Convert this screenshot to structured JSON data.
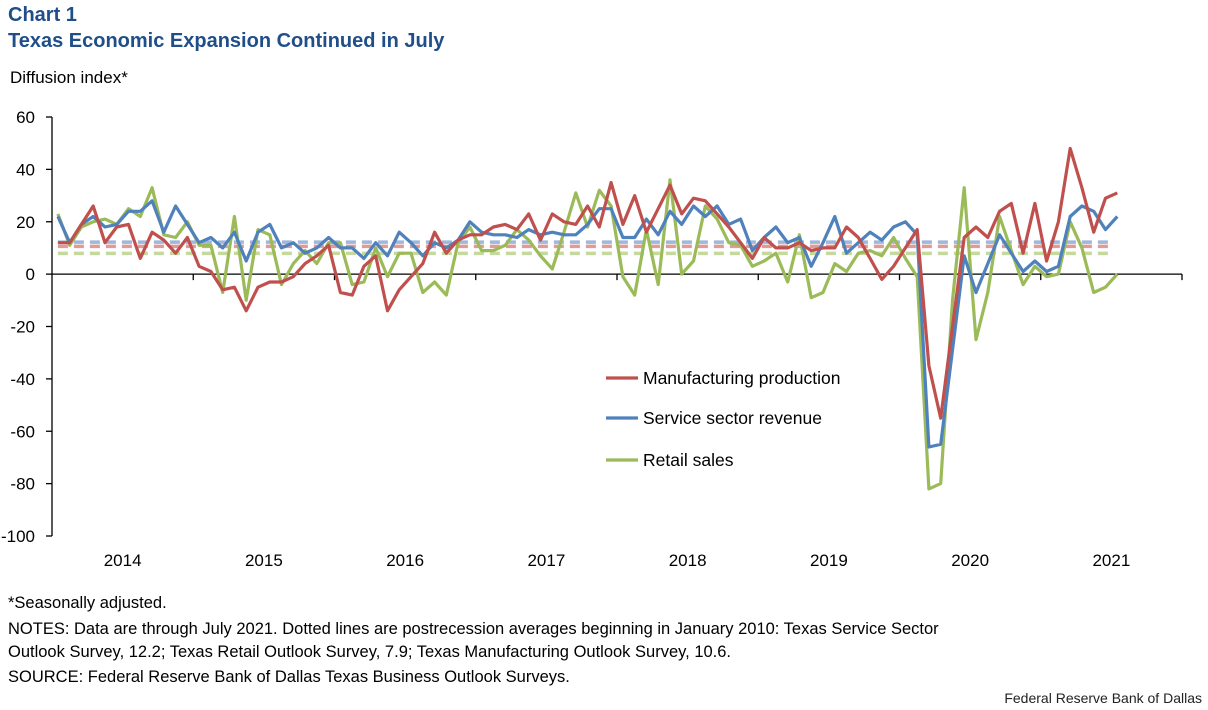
{
  "header": {
    "chart_number": "Chart 1",
    "title": "Texas Economic Expansion Continued in July",
    "y_axis_label": "Diffusion index*"
  },
  "chart_data": {
    "type": "line",
    "title": "Texas Economic Expansion Continued in July",
    "ylabel": "Diffusion index*",
    "xlabel": "",
    "ylim": [
      -100,
      60
    ],
    "yticks": [
      60,
      40,
      20,
      0,
      -20,
      -40,
      -60,
      -80,
      -100
    ],
    "x_start": "2014-01",
    "x_end": "2021-07",
    "frequency": "monthly",
    "x_tick_labels": [
      "2014",
      "2015",
      "2016",
      "2017",
      "2018",
      "2019",
      "2020",
      "2021"
    ],
    "grid": false,
    "legend_position": "bottom-right inside plot",
    "series": [
      {
        "name": "Manufacturing production",
        "color": "#C0504D",
        "values": [
          12,
          12,
          19,
          26,
          12,
          18,
          19,
          6,
          16,
          13,
          8,
          14,
          3,
          1,
          -6,
          -5,
          -14,
          -5,
          -3,
          -3,
          -1,
          4,
          7,
          11,
          -7,
          -8,
          3,
          7,
          -14,
          -6,
          -1,
          4,
          16,
          8,
          13,
          15,
          15,
          18,
          19,
          17,
          23,
          13,
          23,
          20,
          19,
          26,
          18,
          35,
          19,
          30,
          16,
          25,
          34,
          23,
          29,
          28,
          23,
          18,
          12,
          6,
          14,
          10,
          10,
          12,
          9,
          10,
          10,
          18,
          14,
          6,
          -2,
          3,
          10,
          17,
          -35,
          -55,
          -20,
          14,
          18,
          14,
          24,
          27,
          8,
          27,
          5,
          20,
          48,
          33,
          16,
          29,
          31
        ],
        "average": 10.6,
        "average_color": "#E09A98"
      },
      {
        "name": "Service sector revenue",
        "color": "#4F81BD",
        "values": [
          22,
          12,
          19,
          22,
          18,
          19,
          24,
          24,
          28,
          16,
          26,
          19,
          12,
          14,
          10,
          16,
          5,
          16,
          19,
          10,
          12,
          8,
          10,
          14,
          10,
          10,
          6,
          12,
          7,
          16,
          12,
          7,
          12,
          10,
          13,
          20,
          16,
          15,
          15,
          14,
          17,
          15,
          16,
          15,
          15,
          19,
          25,
          25,
          14,
          14,
          21,
          15,
          24,
          19,
          26,
          22,
          26,
          19,
          21,
          9,
          14,
          18,
          12,
          14,
          3,
          12,
          22,
          8,
          12,
          16,
          13,
          18,
          20,
          15,
          -66,
          -65,
          -29,
          7,
          -7,
          4,
          15,
          8,
          1,
          5,
          1,
          3,
          22,
          26,
          24,
          17,
          22
        ],
        "average": 12.2,
        "average_color": "#9DB8DC"
      },
      {
        "name": "Retail sales",
        "color": "#9BBB59",
        "values": [
          23,
          11,
          18,
          20,
          21,
          19,
          25,
          22,
          33,
          15,
          14,
          20,
          11,
          11,
          -7,
          22,
          -10,
          17,
          15,
          -4,
          4,
          9,
          4,
          12,
          12,
          -4,
          -3,
          10,
          -1,
          8,
          8,
          -7,
          -3,
          -8,
          12,
          18,
          9,
          9,
          11,
          17,
          13,
          7,
          2,
          16,
          31,
          18,
          32,
          26,
          -1,
          -8,
          17,
          -4,
          36,
          0,
          5,
          26,
          21,
          12,
          11,
          3,
          5,
          8,
          -3,
          15,
          -9,
          -7,
          4,
          1,
          8,
          9,
          7,
          14,
          6,
          -1,
          -82,
          -80,
          -10,
          33,
          -25,
          -7,
          22,
          9,
          -4,
          3,
          -1,
          0,
          20,
          10,
          -7,
          -5,
          0
        ],
        "average": 7.9,
        "average_color": "#C5D99E"
      }
    ]
  },
  "footer": {
    "footnote": "*Seasonally adjusted.",
    "notes_line1": "NOTES: Data are through July 2021. Dotted lines are postrecession averages beginning in January 2010: Texas Service Sector",
    "notes_line2": "Outlook Survey, 12.2; Texas Retail Outlook Survey, 7.9; Texas Manufacturing Outlook Survey, 10.6.",
    "source": "SOURCE: Federal Reserve Bank of Dallas Texas Business Outlook Surveys.",
    "credit": "Federal Reserve Bank of Dallas"
  }
}
